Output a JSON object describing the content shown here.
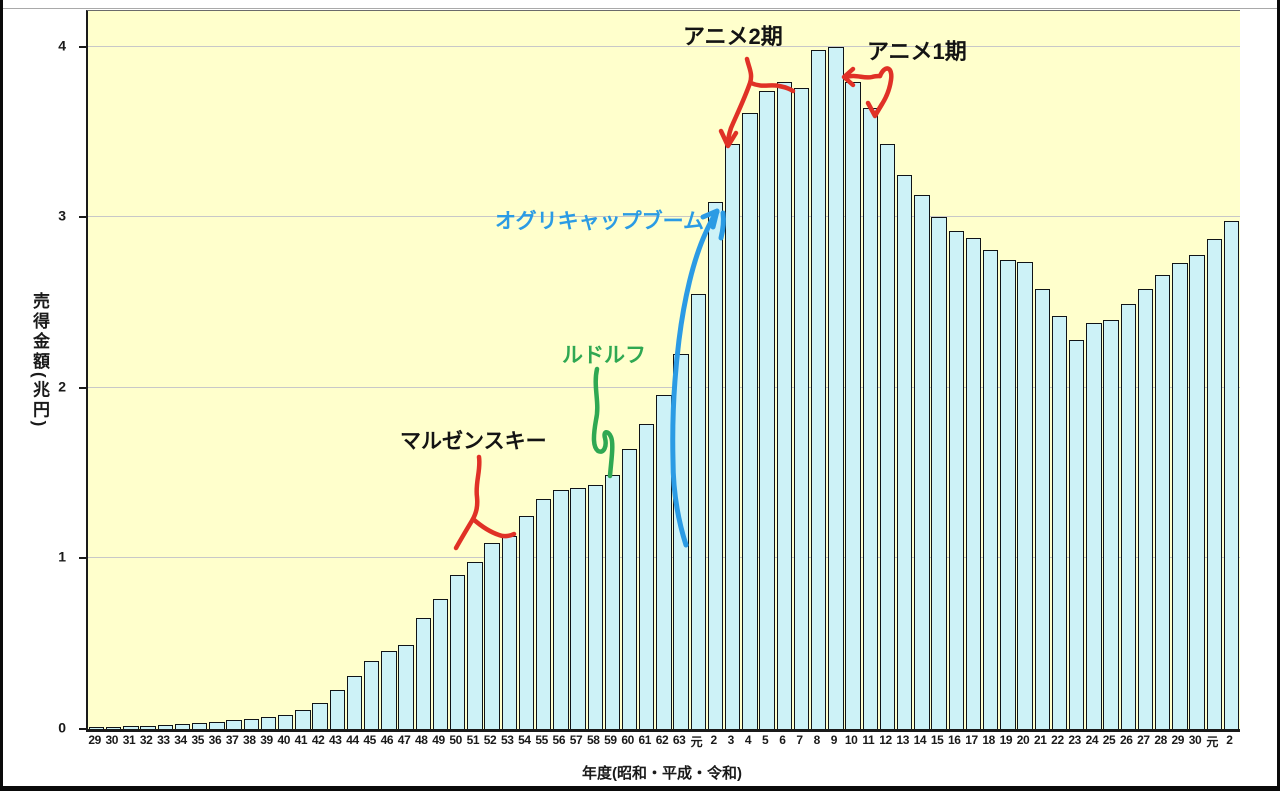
{
  "window": {
    "frame_color": "#0a0a0a",
    "hairline_color": "#a9a9a9",
    "background": "#ffffff"
  },
  "chart_data": {
    "type": "bar",
    "title": "",
    "xlabel": "年度(昭和・平成・令和)",
    "ylabel": "売得金額(兆円)",
    "ylim": [
      0,
      4
    ],
    "yticks": [
      "4",
      "3",
      "2",
      "1",
      "0"
    ],
    "ytick_values": [
      4,
      3,
      2,
      1,
      0
    ],
    "grid": true,
    "legend": "none",
    "plot_bg": "#ffffcc",
    "bar_fill": "#cdf2f7",
    "bar_border": "#101418",
    "grid_color": "#c8c8c8",
    "categories": [
      "29",
      "30",
      "31",
      "32",
      "33",
      "34",
      "35",
      "36",
      "37",
      "38",
      "39",
      "40",
      "41",
      "42",
      "43",
      "44",
      "45",
      "46",
      "47",
      "48",
      "49",
      "50",
      "51",
      "52",
      "53",
      "54",
      "55",
      "56",
      "57",
      "58",
      "59",
      "60",
      "61",
      "62",
      "63",
      "元",
      "2",
      "3",
      "4",
      "5",
      "6",
      "7",
      "8",
      "9",
      "10",
      "11",
      "12",
      "13",
      "14",
      "15",
      "16",
      "17",
      "18",
      "19",
      "20",
      "21",
      "22",
      "23",
      "24",
      "25",
      "26",
      "27",
      "28",
      "29",
      "30",
      "元",
      "2"
    ],
    "values": [
      0.01,
      0.013,
      0.016,
      0.02,
      0.024,
      0.029,
      0.035,
      0.042,
      0.05,
      0.06,
      0.072,
      0.085,
      0.11,
      0.15,
      0.23,
      0.31,
      0.4,
      0.46,
      0.49,
      0.65,
      0.76,
      0.9,
      0.98,
      1.09,
      1.13,
      1.25,
      1.35,
      1.4,
      1.41,
      1.43,
      1.49,
      1.64,
      1.79,
      1.96,
      2.2,
      2.55,
      3.09,
      3.43,
      3.61,
      3.74,
      3.79,
      3.76,
      3.98,
      4.0,
      3.79,
      3.64,
      3.43,
      3.25,
      3.13,
      3.0,
      2.92,
      2.88,
      2.81,
      2.75,
      2.74,
      2.58,
      2.42,
      2.28,
      2.38,
      2.4,
      2.49,
      2.58,
      2.66,
      2.73,
      2.78,
      2.87,
      2.98
    ],
    "annotations": [
      {
        "id": "anime2",
        "text": "アニメ2期",
        "text_color": "#141414",
        "arrow_color": "#e03126",
        "points_at": "平成3"
      },
      {
        "id": "anime1",
        "text": "アニメ1期",
        "text_color": "#141414",
        "arrow_color": "#e03126",
        "points_at": "平成10・11"
      },
      {
        "id": "oguri",
        "text": "オグリキャップブーム",
        "text_color": "#2b9be4",
        "arrow_color": "#2b9be4",
        "points_at": "平成元・2"
      },
      {
        "id": "rudolf",
        "text": "ルドルフ",
        "text_color": "#2fa852",
        "arrow_color": "#2fa852",
        "points_at": "昭和59・60"
      },
      {
        "id": "maruzensky",
        "text": "マルゼンスキー",
        "text_color": "#141414",
        "arrow_color": "#e03126",
        "points_at": "昭和52"
      }
    ]
  }
}
